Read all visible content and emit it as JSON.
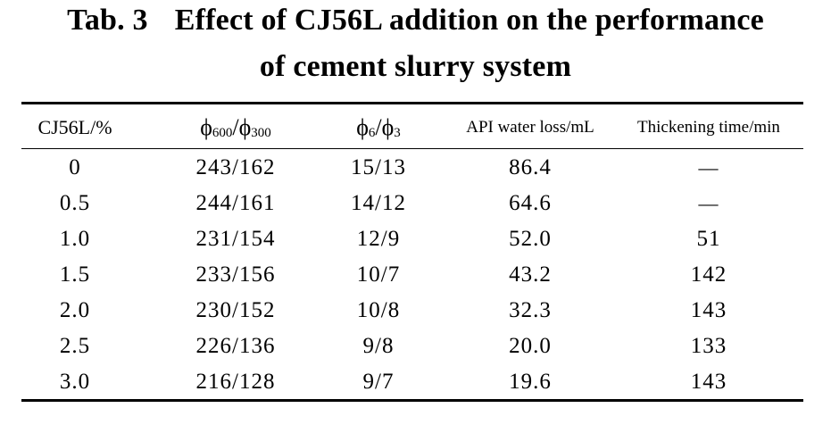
{
  "title": {
    "label": "Tab. 3",
    "line1": "Effect of CJ56L addition on the performance",
    "line2": "of cement slurry system"
  },
  "table": {
    "headers": {
      "c0": "CJ56L/%",
      "c1_a": "ϕ",
      "c1_a_sub": "600",
      "c1_sep": "/",
      "c1_b": "ϕ",
      "c1_b_sub": "300",
      "c2_a": "ϕ",
      "c2_a_sub": "6",
      "c2_sep": "/",
      "c2_b": "ϕ",
      "c2_b_sub": "3",
      "c3": "API water loss/mL",
      "c4": "Thickening time/min"
    },
    "rows": [
      {
        "cj56l": "0",
        "phi600_300": "243/162",
        "phi6_3": "15/13",
        "water_loss": "86.4",
        "thickening": "—"
      },
      {
        "cj56l": "0.5",
        "phi600_300": "244/161",
        "phi6_3": "14/12",
        "water_loss": "64.6",
        "thickening": "—"
      },
      {
        "cj56l": "1.0",
        "phi600_300": "231/154",
        "phi6_3": "12/9",
        "water_loss": "52.0",
        "thickening": "51"
      },
      {
        "cj56l": "1.5",
        "phi600_300": "233/156",
        "phi6_3": "10/7",
        "water_loss": "43.2",
        "thickening": "142"
      },
      {
        "cj56l": "2.0",
        "phi600_300": "230/152",
        "phi6_3": "10/8",
        "water_loss": "32.3",
        "thickening": "143"
      },
      {
        "cj56l": "2.5",
        "phi600_300": "226/136",
        "phi6_3": "9/8",
        "water_loss": "20.0",
        "thickening": "133"
      },
      {
        "cj56l": "3.0",
        "phi600_300": "216/128",
        "phi6_3": "9/7",
        "water_loss": "19.6",
        "thickening": "143"
      }
    ]
  }
}
